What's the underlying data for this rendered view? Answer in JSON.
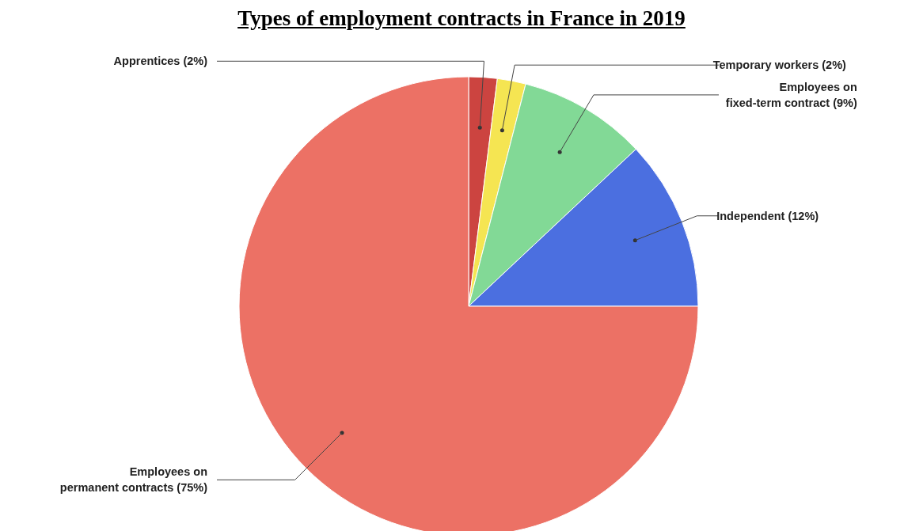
{
  "chart_data": {
    "type": "pie",
    "title": "Types of employment contracts in France in 2019",
    "categories": [
      "Apprentices (2%)",
      "Temporary workers (2%)",
      "Employees on fixed-term contract (9%)",
      "Independent (12%)",
      "Employees on permanent contracts (75%)"
    ],
    "values": [
      2,
      2,
      9,
      12,
      75
    ],
    "colors": [
      "#cc4440",
      "#f5e552",
      "#82d996",
      "#4b6fe0",
      "#ec7165"
    ]
  }
}
